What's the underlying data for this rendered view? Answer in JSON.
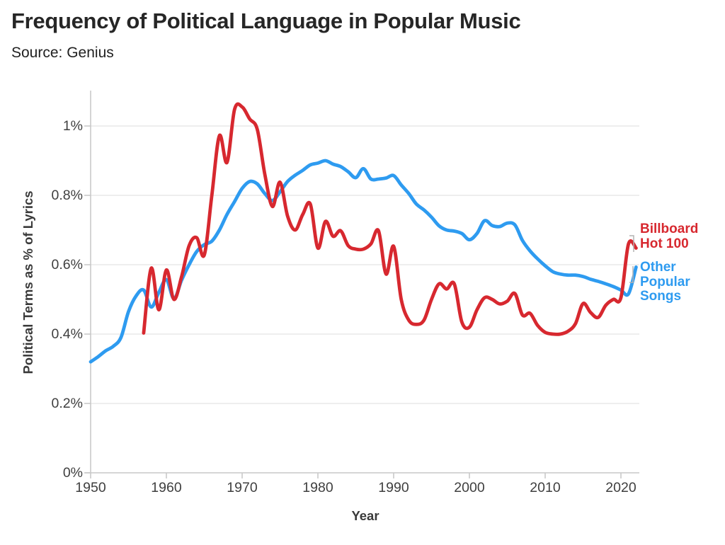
{
  "header": {
    "title": "Frequency of Political Language in Popular Music",
    "subtitle": "Source: Genius"
  },
  "chart_data": {
    "type": "line",
    "title": "Frequency of Political Language in Popular Music",
    "subtitle": "Source: Genius",
    "xlabel": "Year",
    "ylabel": "Political Terms as % of Lyrics",
    "grid": "horizontal",
    "legend_position": "right-of-line-ends",
    "xlim": [
      1950,
      2023
    ],
    "ylim": [
      0,
      1.1
    ],
    "x_ticks": [
      "1950",
      "1960",
      "1970",
      "1980",
      "1990",
      "2000",
      "2010",
      "2020"
    ],
    "x_tick_values": [
      1950,
      1960,
      1970,
      1980,
      1990,
      2000,
      2010,
      2020
    ],
    "y_ticks": [
      "0%",
      "0.2%",
      "0.4%",
      "0.6%",
      "0.8%",
      "1%"
    ],
    "y_tick_values": [
      0,
      0.2,
      0.4,
      0.6,
      0.8,
      1.0
    ],
    "y_unit": "percent of lyrics",
    "series": [
      {
        "name": "Billboard Hot 100",
        "label_lines": [
          "Billboard",
          "Hot 100"
        ],
        "color": "#d7282f",
        "years": [
          1957,
          1958,
          1959,
          1960,
          1961,
          1962,
          1963,
          1964,
          1965,
          1966,
          1967,
          1968,
          1969,
          1970,
          1971,
          1972,
          1973,
          1974,
          1975,
          1976,
          1977,
          1978,
          1979,
          1980,
          1981,
          1982,
          1983,
          1984,
          1985,
          1986,
          1987,
          1988,
          1989,
          1990,
          1991,
          1992,
          1993,
          1994,
          1995,
          1996,
          1997,
          1998,
          1999,
          2000,
          2001,
          2002,
          2003,
          2004,
          2005,
          2006,
          2007,
          2008,
          2009,
          2010,
          2011,
          2012,
          2013,
          2014,
          2015,
          2016,
          2017,
          2018,
          2019,
          2020,
          2021,
          2022
        ],
        "values": [
          0.403,
          0.59,
          0.47,
          0.585,
          0.5,
          0.565,
          0.655,
          0.678,
          0.628,
          0.8,
          0.972,
          0.895,
          1.048,
          1.055,
          1.02,
          0.99,
          0.86,
          0.768,
          0.838,
          0.74,
          0.7,
          0.745,
          0.775,
          0.648,
          0.725,
          0.682,
          0.698,
          0.655,
          0.645,
          0.645,
          0.66,
          0.698,
          0.573,
          0.653,
          0.5,
          0.44,
          0.428,
          0.44,
          0.5,
          0.545,
          0.53,
          0.545,
          0.435,
          0.42,
          0.47,
          0.505,
          0.5,
          0.487,
          0.495,
          0.517,
          0.455,
          0.46,
          0.425,
          0.405,
          0.4,
          0.4,
          0.408,
          0.43,
          0.488,
          0.462,
          0.448,
          0.483,
          0.5,
          0.505,
          0.66,
          0.648
        ]
      },
      {
        "name": "Other Popular Songs",
        "label_lines": [
          "Other",
          "Popular",
          "Songs"
        ],
        "color": "#2e9bf0",
        "years": [
          1950,
          1951,
          1952,
          1953,
          1954,
          1955,
          1956,
          1957,
          1958,
          1959,
          1960,
          1961,
          1962,
          1963,
          1964,
          1965,
          1966,
          1967,
          1968,
          1969,
          1970,
          1971,
          1972,
          1973,
          1974,
          1975,
          1976,
          1977,
          1978,
          1979,
          1980,
          1981,
          1982,
          1983,
          1984,
          1985,
          1986,
          1987,
          1988,
          1989,
          1990,
          1991,
          1992,
          1993,
          1994,
          1995,
          1996,
          1997,
          1998,
          1999,
          2000,
          2001,
          2002,
          2003,
          2004,
          2005,
          2006,
          2007,
          2008,
          2009,
          2010,
          2011,
          2012,
          2013,
          2014,
          2015,
          2016,
          2017,
          2018,
          2019,
          2020,
          2021,
          2022
        ],
        "values": [
          0.32,
          0.335,
          0.352,
          0.365,
          0.39,
          0.465,
          0.51,
          0.527,
          0.478,
          0.52,
          0.557,
          0.502,
          0.555,
          0.6,
          0.638,
          0.658,
          0.668,
          0.7,
          0.745,
          0.782,
          0.82,
          0.84,
          0.833,
          0.805,
          0.785,
          0.81,
          0.84,
          0.858,
          0.872,
          0.888,
          0.893,
          0.9,
          0.89,
          0.883,
          0.868,
          0.851,
          0.877,
          0.847,
          0.847,
          0.85,
          0.857,
          0.83,
          0.805,
          0.775,
          0.758,
          0.737,
          0.712,
          0.7,
          0.697,
          0.69,
          0.672,
          0.69,
          0.727,
          0.713,
          0.71,
          0.72,
          0.715,
          0.67,
          0.64,
          0.617,
          0.597,
          0.58,
          0.573,
          0.57,
          0.57,
          0.566,
          0.558,
          0.552,
          0.545,
          0.537,
          0.527,
          0.516,
          0.593
        ]
      }
    ],
    "colors": {
      "billboard_red": "#d7282f",
      "other_blue": "#2e9bf0",
      "gridline": "#e8e8e8",
      "axis": "#c9c9c9",
      "text_dark": "#262626",
      "tick_text": "#3f3f3f",
      "leader_bracket": "#b3b3b3"
    }
  }
}
